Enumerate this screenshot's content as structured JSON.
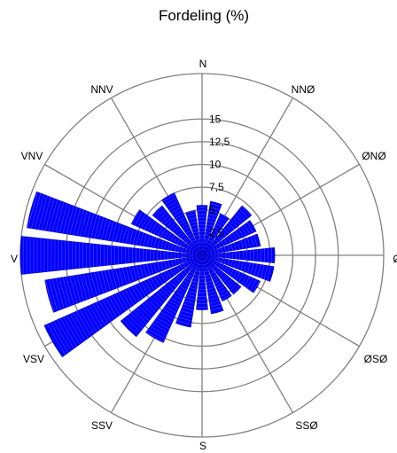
{
  "chart_data": {
    "type": "polar-bar",
    "title": "Fordeling (%)",
    "directions": [
      "N",
      "NNØ",
      "ØNØ",
      "Ø",
      "ØSØ",
      "SSØ",
      "S",
      "SSV",
      "VSV",
      "V",
      "VNV",
      "NNV"
    ],
    "sectors": [
      {
        "center": 0,
        "value": 5.5
      },
      {
        "center": 15,
        "value": 6.0
      },
      {
        "center": 30,
        "value": 5.0
      },
      {
        "center": 45,
        "value": 7.0
      },
      {
        "center": 60,
        "value": 6.5
      },
      {
        "center": 75,
        "value": 6.5
      },
      {
        "center": 90,
        "value": 8.0
      },
      {
        "center": 105,
        "value": 8.0
      },
      {
        "center": 120,
        "value": 7.0
      },
      {
        "center": 135,
        "value": 5.5
      },
      {
        "center": 150,
        "value": 5.5
      },
      {
        "center": 165,
        "value": 6.5
      },
      {
        "center": 180,
        "value": 6.0
      },
      {
        "center": 195,
        "value": 8.0
      },
      {
        "center": 210,
        "value": 10.5
      },
      {
        "center": 225,
        "value": 11.5
      },
      {
        "center": 240,
        "value": 19.0
      },
      {
        "center": 255,
        "value": 17.5
      },
      {
        "center": 270,
        "value": 20.0
      },
      {
        "center": 285,
        "value": 19.5
      },
      {
        "center": 300,
        "value": 8.5
      },
      {
        "center": 315,
        "value": 7.0
      },
      {
        "center": 330,
        "value": 7.5
      },
      {
        "center": 345,
        "value": 5.0
      }
    ],
    "sector_width": 12,
    "rings": [
      2.5,
      5,
      7.5,
      10,
      12.5,
      15
    ],
    "ring_labels": [
      "2,5",
      "5",
      "7,5",
      "10",
      "12,5",
      "15"
    ],
    "r_max": 20,
    "colors": {
      "bar": "#0000ff",
      "bar_edge": "#0000c8",
      "grid": "#808080",
      "hatch": "#ffffff"
    }
  }
}
